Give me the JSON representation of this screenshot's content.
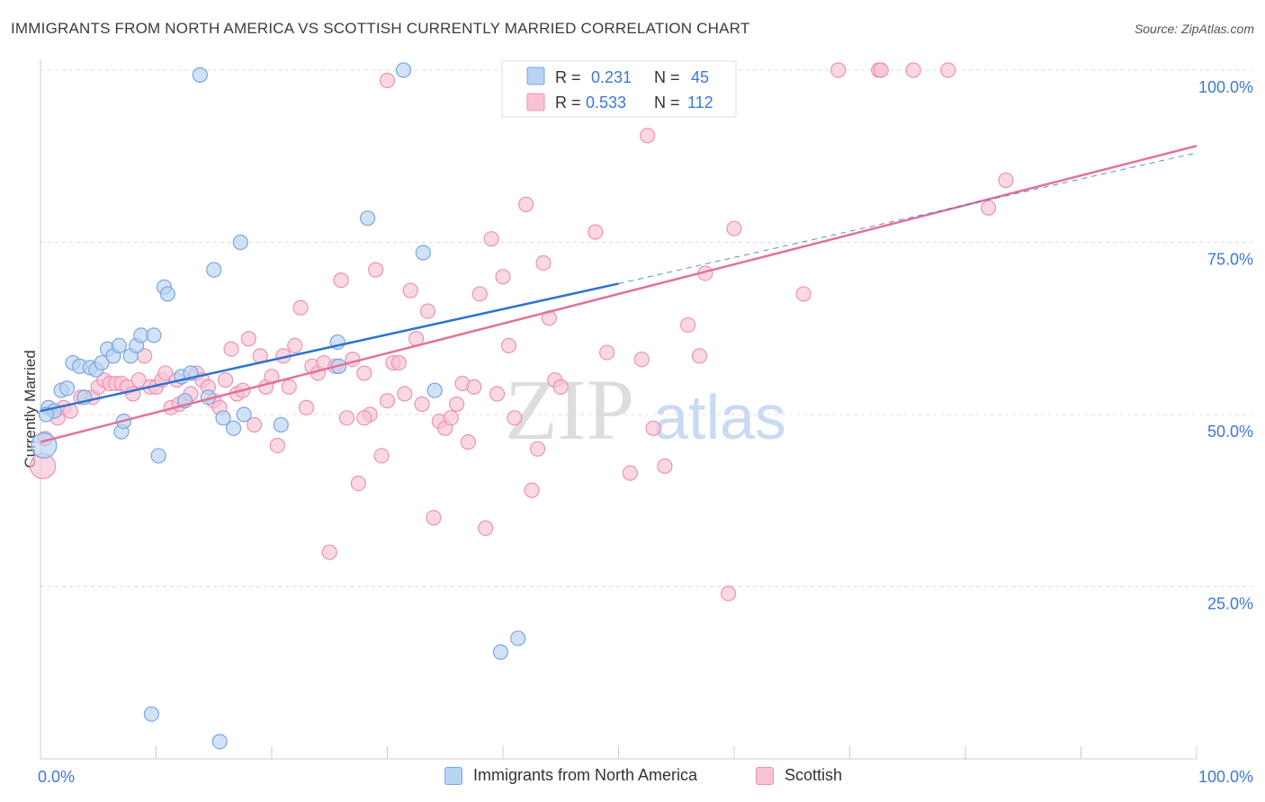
{
  "title": "IMMIGRANTS FROM NORTH AMERICA VS SCOTTISH CURRENTLY MARRIED CORRELATION CHART",
  "source": "Source: ZipAtlas.com",
  "colors": {
    "blue_fill": "#b9d3f3",
    "blue_stroke": "#7aa6df",
    "blue_line": "#2f73d0",
    "pink_fill": "#f7c3d4",
    "pink_stroke": "#eb93b1",
    "pink_line": "#e2719a",
    "axis_label": "#3c78d8",
    "grid": "#dddddd"
  },
  "legend": {
    "blue": {
      "r_label": "R =",
      "r_value": "0.231",
      "n_label": "N =",
      "n_value": "45"
    },
    "pink": {
      "r_label": "R =",
      "r_value": "0.533",
      "n_label": "N =",
      "n_value": "112"
    }
  },
  "watermark": {
    "zip": "ZIP",
    "atlas": "atlas"
  },
  "chart_data": {
    "type": "scatter",
    "xlabel": "",
    "ylabel": "Currently Married",
    "xlim": [
      0,
      100
    ],
    "ylim": [
      0,
      100
    ],
    "x_tick_labels": [
      "0.0%",
      "100.0%"
    ],
    "y_tick_labels": [
      {
        "value": 25,
        "label": "25.0%"
      },
      {
        "value": 50,
        "label": "50.0%"
      },
      {
        "value": 75,
        "label": "75.0%"
      },
      {
        "value": 100,
        "label": "100.0%"
      }
    ],
    "grid": "horizontal dashed",
    "legend_position": "top-center",
    "series": [
      {
        "name": "Immigrants from North America",
        "color": "blue",
        "points": [
          [
            0.3,
            45.5
          ],
          [
            0.7,
            51
          ],
          [
            1.2,
            50.5
          ],
          [
            1.8,
            53.5
          ],
          [
            2.3,
            53.8
          ],
          [
            2.8,
            57.5
          ],
          [
            3.4,
            57
          ],
          [
            3.8,
            52.5
          ],
          [
            4.3,
            56.8
          ],
          [
            4.8,
            56.5
          ],
          [
            5.3,
            57.5
          ],
          [
            5.8,
            59.5
          ],
          [
            6.3,
            58.5
          ],
          [
            7.0,
            47.5
          ],
          [
            7.2,
            49
          ],
          [
            7.8,
            58.5
          ],
          [
            8.3,
            60
          ],
          [
            8.7,
            61.5
          ],
          [
            9.8,
            61.5
          ],
          [
            10.2,
            44
          ],
          [
            10.7,
            68.5
          ],
          [
            11.0,
            67.5
          ],
          [
            12.2,
            55.5
          ],
          [
            12.5,
            52
          ],
          [
            13.0,
            56
          ],
          [
            13.8,
            99.3
          ],
          [
            14.5,
            52.5
          ],
          [
            15.0,
            71
          ],
          [
            15.5,
            2.5
          ],
          [
            15.8,
            49.5
          ],
          [
            16.7,
            48
          ],
          [
            17.3,
            75
          ],
          [
            17.6,
            50
          ],
          [
            20.8,
            48.5
          ],
          [
            25.7,
            60.5
          ],
          [
            25.8,
            57
          ],
          [
            28.3,
            78.5
          ],
          [
            31.4,
            100
          ],
          [
            33.1,
            73.5
          ],
          [
            34.1,
            53.5
          ],
          [
            39.8,
            15.5
          ],
          [
            41.3,
            17.5
          ],
          [
            9.6,
            6.5
          ],
          [
            0.5,
            50
          ],
          [
            6.8,
            60
          ]
        ]
      },
      {
        "name": "Scottish",
        "color": "pink",
        "points": [
          [
            0.2,
            42.5
          ],
          [
            0.4,
            46.5
          ],
          [
            1.5,
            49.5
          ],
          [
            2.0,
            51
          ],
          [
            2.6,
            50.5
          ],
          [
            3.5,
            52.5
          ],
          [
            4.5,
            52.5
          ],
          [
            5.0,
            54
          ],
          [
            5.5,
            55
          ],
          [
            6.0,
            54.5
          ],
          [
            6.5,
            54.5
          ],
          [
            7.0,
            54.5
          ],
          [
            7.5,
            54
          ],
          [
            8.0,
            53
          ],
          [
            8.5,
            55
          ],
          [
            9.0,
            58.5
          ],
          [
            9.5,
            54
          ],
          [
            10.0,
            54
          ],
          [
            10.5,
            55
          ],
          [
            10.8,
            56
          ],
          [
            11.3,
            51
          ],
          [
            11.8,
            55
          ],
          [
            12.0,
            51.5
          ],
          [
            12.5,
            52
          ],
          [
            13.0,
            53
          ],
          [
            13.5,
            56
          ],
          [
            14.0,
            55
          ],
          [
            14.5,
            54
          ],
          [
            15.0,
            52
          ],
          [
            15.5,
            51
          ],
          [
            16.0,
            55
          ],
          [
            16.5,
            59.5
          ],
          [
            17.0,
            53
          ],
          [
            17.5,
            53.5
          ],
          [
            18.0,
            61
          ],
          [
            18.5,
            48.5
          ],
          [
            19.0,
            58.5
          ],
          [
            19.5,
            54
          ],
          [
            20.0,
            55.5
          ],
          [
            20.5,
            45.5
          ],
          [
            21.0,
            58.5
          ],
          [
            21.5,
            54
          ],
          [
            22.0,
            60
          ],
          [
            22.5,
            65.5
          ],
          [
            23.0,
            51
          ],
          [
            23.5,
            57
          ],
          [
            24.0,
            56
          ],
          [
            24.5,
            57.5
          ],
          [
            25.0,
            30
          ],
          [
            25.5,
            57
          ],
          [
            26.0,
            69.5
          ],
          [
            26.5,
            49.5
          ],
          [
            27.0,
            58
          ],
          [
            27.5,
            40
          ],
          [
            28.0,
            56
          ],
          [
            28.5,
            50
          ],
          [
            29.0,
            71
          ],
          [
            29.5,
            44
          ],
          [
            30.0,
            52
          ],
          [
            30.5,
            57.5
          ],
          [
            31.0,
            57.5
          ],
          [
            31.5,
            53
          ],
          [
            32.0,
            68
          ],
          [
            32.5,
            61
          ],
          [
            33.0,
            51.5
          ],
          [
            33.5,
            65
          ],
          [
            34.0,
            35
          ],
          [
            34.5,
            49
          ],
          [
            35.0,
            48
          ],
          [
            35.5,
            49.5
          ],
          [
            36.0,
            51.5
          ],
          [
            36.5,
            54.5
          ],
          [
            37.0,
            46
          ],
          [
            37.5,
            54
          ],
          [
            38.0,
            67.5
          ],
          [
            38.5,
            33.5
          ],
          [
            39.0,
            75.5
          ],
          [
            39.5,
            53
          ],
          [
            40.0,
            70
          ],
          [
            40.5,
            60
          ],
          [
            41.0,
            49.5
          ],
          [
            42.0,
            80.5
          ],
          [
            42.5,
            39
          ],
          [
            43.0,
            45
          ],
          [
            43.5,
            72
          ],
          [
            44.0,
            64
          ],
          [
            44.5,
            55
          ],
          [
            45.0,
            54
          ],
          [
            46.0,
            97
          ],
          [
            48.0,
            76.5
          ],
          [
            49.0,
            59
          ],
          [
            51.0,
            41.5
          ],
          [
            52.0,
            58
          ],
          [
            52.5,
            90.5
          ],
          [
            53.0,
            48
          ],
          [
            54.0,
            42.5
          ],
          [
            55.0,
            99.5
          ],
          [
            56.0,
            63
          ],
          [
            57.0,
            58.5
          ],
          [
            57.5,
            70.5
          ],
          [
            59.5,
            24
          ],
          [
            60.0,
            77
          ],
          [
            66.0,
            67.5
          ],
          [
            69.0,
            100
          ],
          [
            72.5,
            100
          ],
          [
            72.7,
            100
          ],
          [
            75.5,
            100
          ],
          [
            78.5,
            100
          ],
          [
            82.0,
            80
          ],
          [
            83.5,
            84
          ],
          [
            30.0,
            98.5
          ],
          [
            28.0,
            49.5
          ]
        ]
      }
    ],
    "trendlines": [
      {
        "series": "Immigrants from North America",
        "x": [
          0,
          50
        ],
        "y": [
          50.5,
          69
        ],
        "dashed_extension": {
          "x": [
            50,
            100
          ],
          "y": [
            69,
            88
          ]
        }
      },
      {
        "series": "Scottish",
        "x": [
          0,
          100
        ],
        "y": [
          46,
          89
        ]
      }
    ]
  }
}
